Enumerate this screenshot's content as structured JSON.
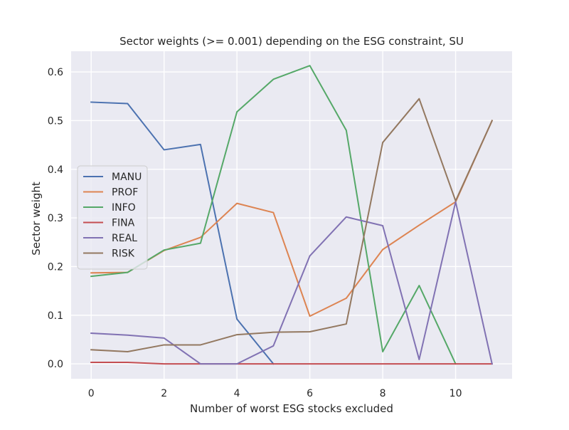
{
  "chart_data": {
    "type": "line",
    "title": "Sector weights (>= 0.001) depending on the ESG constraint, SU",
    "xlabel": "Number of worst ESG stocks excluded",
    "ylabel": "Sector weight",
    "xlim": [
      -0.55,
      11.55
    ],
    "ylim": [
      -0.0306,
      0.6426
    ],
    "xticks": [
      0,
      2,
      4,
      6,
      8,
      10
    ],
    "xtick_labels": [
      "0",
      "2",
      "4",
      "6",
      "8",
      "10"
    ],
    "yticks": [
      0.0,
      0.1,
      0.2,
      0.3,
      0.4,
      0.5,
      0.6
    ],
    "ytick_labels": [
      "0.0",
      "0.1",
      "0.2",
      "0.3",
      "0.4",
      "0.5",
      "0.6"
    ],
    "grid": true,
    "legend_position": "center-left",
    "background": "#eaeaf2",
    "x": [
      0,
      1,
      2,
      3,
      4,
      5,
      6,
      7,
      8,
      9,
      10,
      11
    ],
    "series": [
      {
        "name": "MANU",
        "color": "#4c72b0",
        "x": [
          0,
          1,
          2,
          3,
          4,
          5
        ],
        "values": [
          0.538,
          0.535,
          0.44,
          0.451,
          0.092,
          0.0
        ]
      },
      {
        "name": "PROF",
        "color": "#dd8452",
        "x": [
          0,
          1,
          2,
          3,
          4,
          5,
          6,
          7,
          8,
          9,
          10,
          11
        ],
        "values": [
          0.187,
          0.188,
          0.233,
          0.26,
          0.33,
          0.311,
          0.098,
          0.135,
          0.235,
          0.285,
          0.333,
          0.5
        ]
      },
      {
        "name": "INFO",
        "color": "#55a868",
        "x": [
          0,
          1,
          2,
          3,
          4,
          5,
          6,
          7,
          8,
          9,
          10
        ],
        "values": [
          0.18,
          0.188,
          0.234,
          0.248,
          0.518,
          0.585,
          0.613,
          0.48,
          0.025,
          0.161,
          0.0
        ]
      },
      {
        "name": "FINA",
        "color": "#c44e52",
        "x": [
          0,
          1,
          2,
          3,
          4,
          5,
          6,
          7,
          8,
          9,
          10,
          11
        ],
        "values": [
          0.003,
          0.003,
          0.0,
          0.0,
          0.0,
          0.0,
          0.0,
          0.0,
          0.0,
          0.0,
          0.0,
          0.0
        ]
      },
      {
        "name": "REAL",
        "color": "#8172b3",
        "x": [
          0,
          1,
          2,
          3,
          4,
          5,
          6,
          7,
          8,
          9,
          10,
          11
        ],
        "values": [
          0.063,
          0.059,
          0.053,
          0.0,
          0.0,
          0.037,
          0.222,
          0.302,
          0.284,
          0.009,
          0.333,
          0.0
        ]
      },
      {
        "name": "RISK",
        "color": "#937860",
        "x": [
          0,
          1,
          2,
          3,
          4,
          5,
          6,
          7,
          8,
          9,
          10,
          11
        ],
        "values": [
          0.029,
          0.025,
          0.039,
          0.039,
          0.06,
          0.065,
          0.066,
          0.082,
          0.455,
          0.545,
          0.335,
          0.5
        ]
      }
    ]
  }
}
